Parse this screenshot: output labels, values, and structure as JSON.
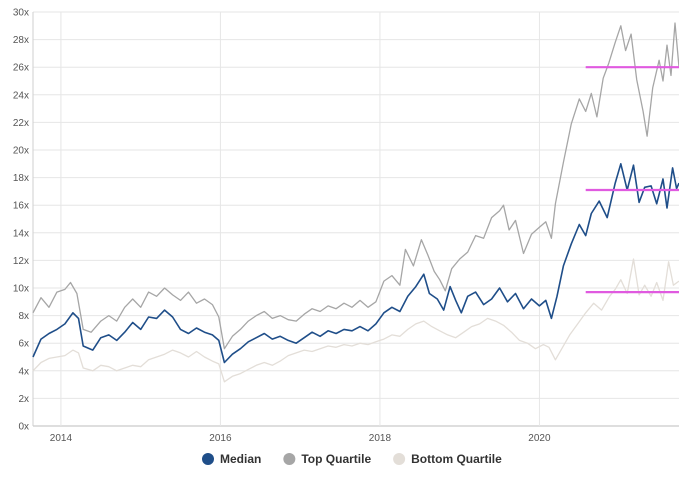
{
  "chart_data": {
    "type": "line",
    "title": "",
    "xlabel": "",
    "ylabel": "",
    "xlim": [
      2013.65,
      2021.75
    ],
    "ylim": [
      0,
      30
    ],
    "y_ticks": [
      0,
      2,
      4,
      6,
      8,
      10,
      12,
      14,
      16,
      18,
      20,
      22,
      24,
      26,
      28,
      30
    ],
    "y_tick_labels": [
      "0x",
      "2x",
      "4x",
      "6x",
      "8x",
      "10x",
      "12x",
      "14x",
      "16x",
      "18x",
      "20x",
      "22x",
      "24x",
      "26x",
      "28x",
      "30x"
    ],
    "x_ticks": [
      2014,
      2016,
      2018,
      2020
    ],
    "x_tick_labels": [
      "2014",
      "2016",
      "2018",
      "2020"
    ],
    "grid": true,
    "legend_position": "bottom",
    "series": [
      {
        "name": "Median",
        "color": "#1f4e89",
        "points": [
          [
            2013.65,
            5.0
          ],
          [
            2013.75,
            6.3
          ],
          [
            2013.85,
            6.7
          ],
          [
            2013.95,
            7.0
          ],
          [
            2014.05,
            7.4
          ],
          [
            2014.15,
            8.2
          ],
          [
            2014.22,
            7.8
          ],
          [
            2014.28,
            5.8
          ],
          [
            2014.4,
            5.5
          ],
          [
            2014.5,
            6.4
          ],
          [
            2014.6,
            6.6
          ],
          [
            2014.7,
            6.2
          ],
          [
            2014.8,
            6.8
          ],
          [
            2014.9,
            7.5
          ],
          [
            2015.0,
            7.0
          ],
          [
            2015.1,
            7.9
          ],
          [
            2015.2,
            7.8
          ],
          [
            2015.3,
            8.4
          ],
          [
            2015.4,
            7.9
          ],
          [
            2015.5,
            7.0
          ],
          [
            2015.6,
            6.7
          ],
          [
            2015.7,
            7.1
          ],
          [
            2015.8,
            6.8
          ],
          [
            2015.9,
            6.6
          ],
          [
            2015.98,
            6.2
          ],
          [
            2016.05,
            4.6
          ],
          [
            2016.15,
            5.2
          ],
          [
            2016.25,
            5.6
          ],
          [
            2016.35,
            6.1
          ],
          [
            2016.45,
            6.4
          ],
          [
            2016.55,
            6.7
          ],
          [
            2016.65,
            6.3
          ],
          [
            2016.75,
            6.5
          ],
          [
            2016.85,
            6.2
          ],
          [
            2016.95,
            6.0
          ],
          [
            2017.05,
            6.4
          ],
          [
            2017.15,
            6.8
          ],
          [
            2017.25,
            6.5
          ],
          [
            2017.35,
            6.9
          ],
          [
            2017.45,
            6.7
          ],
          [
            2017.55,
            7.0
          ],
          [
            2017.65,
            6.9
          ],
          [
            2017.75,
            7.2
          ],
          [
            2017.85,
            6.9
          ],
          [
            2017.95,
            7.4
          ],
          [
            2018.05,
            8.2
          ],
          [
            2018.15,
            8.6
          ],
          [
            2018.25,
            8.3
          ],
          [
            2018.35,
            9.4
          ],
          [
            2018.45,
            10.1
          ],
          [
            2018.55,
            11.0
          ],
          [
            2018.62,
            9.6
          ],
          [
            2018.72,
            9.2
          ],
          [
            2018.8,
            8.4
          ],
          [
            2018.88,
            10.1
          ],
          [
            2018.95,
            9.1
          ],
          [
            2019.02,
            8.2
          ],
          [
            2019.1,
            9.4
          ],
          [
            2019.2,
            9.7
          ],
          [
            2019.3,
            8.8
          ],
          [
            2019.4,
            9.2
          ],
          [
            2019.5,
            10.0
          ],
          [
            2019.6,
            9.0
          ],
          [
            2019.7,
            9.6
          ],
          [
            2019.8,
            8.5
          ],
          [
            2019.9,
            9.2
          ],
          [
            2020.0,
            8.7
          ],
          [
            2020.08,
            9.1
          ],
          [
            2020.15,
            7.8
          ],
          [
            2020.22,
            9.4
          ],
          [
            2020.3,
            11.6
          ],
          [
            2020.4,
            13.2
          ],
          [
            2020.5,
            14.6
          ],
          [
            2020.58,
            13.8
          ],
          [
            2020.65,
            15.4
          ],
          [
            2020.75,
            16.3
          ],
          [
            2020.85,
            15.1
          ],
          [
            2020.95,
            17.6
          ],
          [
            2021.02,
            19.0
          ],
          [
            2021.1,
            17.1
          ],
          [
            2021.18,
            18.9
          ],
          [
            2021.25,
            16.2
          ],
          [
            2021.32,
            17.3
          ],
          [
            2021.4,
            17.4
          ],
          [
            2021.47,
            16.1
          ],
          [
            2021.55,
            17.9
          ],
          [
            2021.6,
            15.8
          ],
          [
            2021.67,
            18.7
          ],
          [
            2021.72,
            17.2
          ],
          [
            2021.75,
            17.6
          ]
        ]
      },
      {
        "name": "Top Quartile",
        "color": "#a6a6a6",
        "points": [
          [
            2013.65,
            8.2
          ],
          [
            2013.75,
            9.3
          ],
          [
            2013.85,
            8.6
          ],
          [
            2013.95,
            9.7
          ],
          [
            2014.05,
            9.9
          ],
          [
            2014.12,
            10.4
          ],
          [
            2014.2,
            9.6
          ],
          [
            2014.28,
            7.0
          ],
          [
            2014.38,
            6.8
          ],
          [
            2014.5,
            7.6
          ],
          [
            2014.6,
            8.0
          ],
          [
            2014.7,
            7.6
          ],
          [
            2014.8,
            8.6
          ],
          [
            2014.9,
            9.2
          ],
          [
            2015.0,
            8.6
          ],
          [
            2015.1,
            9.7
          ],
          [
            2015.2,
            9.4
          ],
          [
            2015.3,
            10.0
          ],
          [
            2015.4,
            9.5
          ],
          [
            2015.5,
            9.1
          ],
          [
            2015.6,
            9.7
          ],
          [
            2015.7,
            8.9
          ],
          [
            2015.8,
            9.2
          ],
          [
            2015.9,
            8.8
          ],
          [
            2015.98,
            7.9
          ],
          [
            2016.05,
            5.6
          ],
          [
            2016.15,
            6.5
          ],
          [
            2016.25,
            7.0
          ],
          [
            2016.35,
            7.6
          ],
          [
            2016.45,
            8.0
          ],
          [
            2016.55,
            8.3
          ],
          [
            2016.65,
            7.8
          ],
          [
            2016.75,
            8.0
          ],
          [
            2016.85,
            7.7
          ],
          [
            2016.95,
            7.6
          ],
          [
            2017.05,
            8.1
          ],
          [
            2017.15,
            8.5
          ],
          [
            2017.25,
            8.3
          ],
          [
            2017.35,
            8.7
          ],
          [
            2017.45,
            8.5
          ],
          [
            2017.55,
            8.9
          ],
          [
            2017.65,
            8.6
          ],
          [
            2017.75,
            9.1
          ],
          [
            2017.85,
            8.6
          ],
          [
            2017.95,
            9.0
          ],
          [
            2018.05,
            10.5
          ],
          [
            2018.15,
            10.9
          ],
          [
            2018.25,
            10.2
          ],
          [
            2018.32,
            12.8
          ],
          [
            2018.42,
            11.6
          ],
          [
            2018.52,
            13.5
          ],
          [
            2018.6,
            12.4
          ],
          [
            2018.68,
            11.2
          ],
          [
            2018.75,
            10.6
          ],
          [
            2018.82,
            9.8
          ],
          [
            2018.9,
            11.4
          ],
          [
            2019.0,
            12.1
          ],
          [
            2019.1,
            12.6
          ],
          [
            2019.2,
            13.8
          ],
          [
            2019.3,
            13.6
          ],
          [
            2019.4,
            15.1
          ],
          [
            2019.5,
            15.6
          ],
          [
            2019.55,
            16.0
          ],
          [
            2019.62,
            14.2
          ],
          [
            2019.7,
            14.9
          ],
          [
            2019.8,
            12.5
          ],
          [
            2019.9,
            13.9
          ],
          [
            2020.0,
            14.4
          ],
          [
            2020.08,
            14.8
          ],
          [
            2020.15,
            13.6
          ],
          [
            2020.2,
            16.1
          ],
          [
            2020.3,
            19.1
          ],
          [
            2020.4,
            21.9
          ],
          [
            2020.5,
            23.7
          ],
          [
            2020.58,
            22.8
          ],
          [
            2020.65,
            24.1
          ],
          [
            2020.72,
            22.4
          ],
          [
            2020.8,
            25.2
          ],
          [
            2020.87,
            26.3
          ],
          [
            2020.95,
            27.8
          ],
          [
            2021.02,
            29.0
          ],
          [
            2021.08,
            27.2
          ],
          [
            2021.15,
            28.4
          ],
          [
            2021.22,
            25.1
          ],
          [
            2021.3,
            22.8
          ],
          [
            2021.35,
            21.0
          ],
          [
            2021.42,
            24.5
          ],
          [
            2021.5,
            26.5
          ],
          [
            2021.55,
            25.0
          ],
          [
            2021.6,
            27.6
          ],
          [
            2021.65,
            25.4
          ],
          [
            2021.7,
            29.2
          ],
          [
            2021.75,
            26.0
          ]
        ]
      },
      {
        "name": "Bottom Quartile",
        "color": "#e3ded8",
        "points": [
          [
            2013.65,
            4.0
          ],
          [
            2013.75,
            4.6
          ],
          [
            2013.85,
            4.9
          ],
          [
            2013.95,
            5.0
          ],
          [
            2014.05,
            5.1
          ],
          [
            2014.15,
            5.5
          ],
          [
            2014.22,
            5.3
          ],
          [
            2014.28,
            4.2
          ],
          [
            2014.4,
            4.0
          ],
          [
            2014.5,
            4.4
          ],
          [
            2014.6,
            4.3
          ],
          [
            2014.7,
            4.0
          ],
          [
            2014.8,
            4.2
          ],
          [
            2014.9,
            4.4
          ],
          [
            2015.0,
            4.3
          ],
          [
            2015.1,
            4.8
          ],
          [
            2015.2,
            5.0
          ],
          [
            2015.3,
            5.2
          ],
          [
            2015.4,
            5.5
          ],
          [
            2015.5,
            5.3
          ],
          [
            2015.6,
            5.0
          ],
          [
            2015.7,
            5.4
          ],
          [
            2015.8,
            5.0
          ],
          [
            2015.9,
            4.7
          ],
          [
            2015.98,
            4.5
          ],
          [
            2016.05,
            3.2
          ],
          [
            2016.15,
            3.6
          ],
          [
            2016.25,
            3.8
          ],
          [
            2016.35,
            4.1
          ],
          [
            2016.45,
            4.4
          ],
          [
            2016.55,
            4.6
          ],
          [
            2016.65,
            4.4
          ],
          [
            2016.75,
            4.7
          ],
          [
            2016.85,
            5.1
          ],
          [
            2016.95,
            5.3
          ],
          [
            2017.05,
            5.5
          ],
          [
            2017.15,
            5.4
          ],
          [
            2017.25,
            5.6
          ],
          [
            2017.35,
            5.8
          ],
          [
            2017.45,
            5.7
          ],
          [
            2017.55,
            5.9
          ],
          [
            2017.65,
            5.8
          ],
          [
            2017.75,
            6.0
          ],
          [
            2017.85,
            5.9
          ],
          [
            2017.95,
            6.1
          ],
          [
            2018.05,
            6.3
          ],
          [
            2018.15,
            6.6
          ],
          [
            2018.25,
            6.5
          ],
          [
            2018.35,
            7.0
          ],
          [
            2018.45,
            7.4
          ],
          [
            2018.55,
            7.6
          ],
          [
            2018.65,
            7.2
          ],
          [
            2018.75,
            6.9
          ],
          [
            2018.85,
            6.6
          ],
          [
            2018.95,
            6.4
          ],
          [
            2019.05,
            6.8
          ],
          [
            2019.15,
            7.2
          ],
          [
            2019.25,
            7.4
          ],
          [
            2019.35,
            7.8
          ],
          [
            2019.45,
            7.6
          ],
          [
            2019.55,
            7.3
          ],
          [
            2019.65,
            6.8
          ],
          [
            2019.75,
            6.2
          ],
          [
            2019.85,
            6.0
          ],
          [
            2019.95,
            5.6
          ],
          [
            2020.05,
            5.9
          ],
          [
            2020.12,
            5.7
          ],
          [
            2020.2,
            4.8
          ],
          [
            2020.28,
            5.6
          ],
          [
            2020.38,
            6.6
          ],
          [
            2020.48,
            7.4
          ],
          [
            2020.58,
            8.2
          ],
          [
            2020.68,
            8.9
          ],
          [
            2020.78,
            8.4
          ],
          [
            2020.88,
            9.4
          ],
          [
            2020.95,
            9.9
          ],
          [
            2021.02,
            10.6
          ],
          [
            2021.1,
            9.6
          ],
          [
            2021.18,
            12.1
          ],
          [
            2021.25,
            9.5
          ],
          [
            2021.32,
            10.2
          ],
          [
            2021.4,
            9.4
          ],
          [
            2021.47,
            10.4
          ],
          [
            2021.55,
            9.1
          ],
          [
            2021.62,
            11.9
          ],
          [
            2021.68,
            10.2
          ],
          [
            2021.75,
            10.5
          ]
        ]
      }
    ],
    "reference_lines": [
      {
        "y": 26.0,
        "x_from": 2020.58,
        "x_to": 2021.75,
        "color": "#e05ae0"
      },
      {
        "y": 17.1,
        "x_from": 2020.58,
        "x_to": 2021.75,
        "color": "#e05ae0"
      },
      {
        "y": 9.7,
        "x_from": 2020.58,
        "x_to": 2021.75,
        "color": "#e05ae0"
      }
    ]
  }
}
